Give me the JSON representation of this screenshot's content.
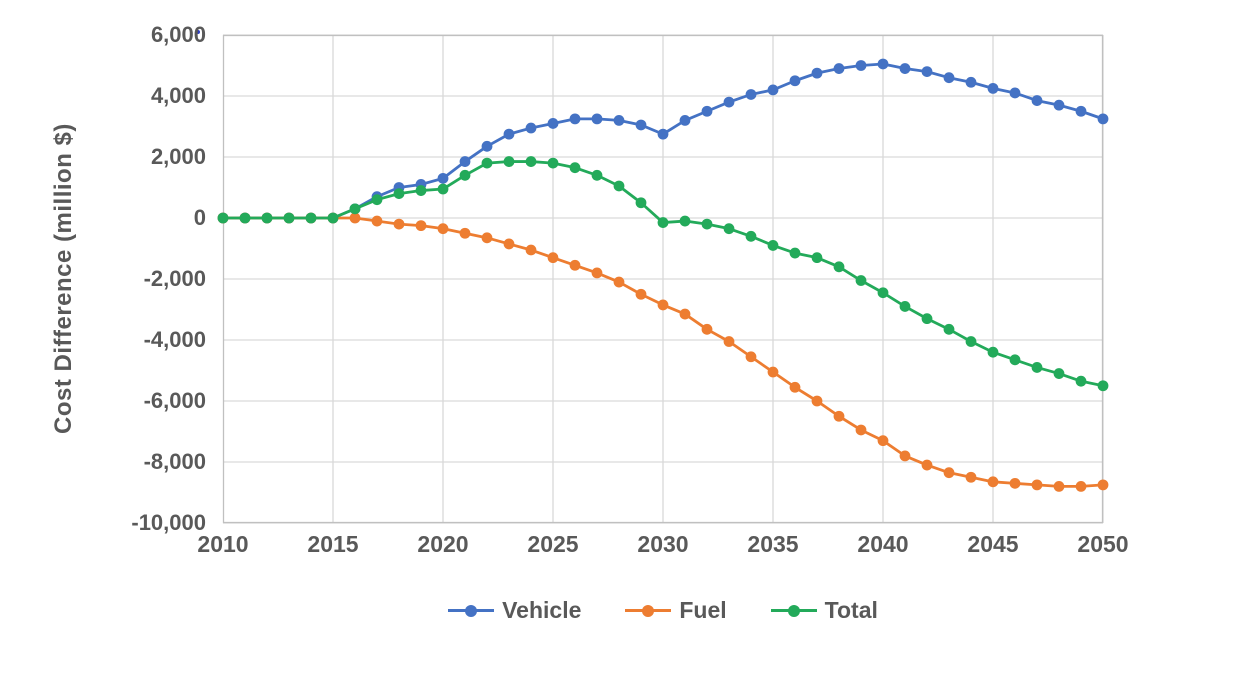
{
  "chart_data": {
    "type": "line",
    "title": "",
    "xlabel": "",
    "ylabel": "Cost Difference (million $)",
    "grid": true,
    "legend_position": "bottom",
    "text_color": "#595959",
    "grid_color": "#D9D9D9",
    "axis_color": "#C0C0C0",
    "background_color": "#FFFFFF",
    "xlim": [
      2010,
      2050
    ],
    "ylim": [
      -10000,
      6000
    ],
    "x": [
      2010,
      2011,
      2012,
      2013,
      2014,
      2015,
      2016,
      2017,
      2018,
      2019,
      2020,
      2021,
      2022,
      2023,
      2024,
      2025,
      2026,
      2027,
      2028,
      2029,
      2030,
      2031,
      2032,
      2033,
      2034,
      2035,
      2036,
      2037,
      2038,
      2039,
      2040,
      2041,
      2042,
      2043,
      2044,
      2045,
      2046,
      2047,
      2048,
      2049,
      2050
    ],
    "x_ticks": [
      2010,
      2015,
      2020,
      2025,
      2030,
      2035,
      2040,
      2045,
      2050
    ],
    "x_tick_labels": [
      "2010",
      "2015",
      "2020",
      "2025",
      "2030",
      "2035",
      "2040",
      "2045",
      "2050"
    ],
    "yticks": [
      6000,
      4000,
      2000,
      0,
      -2000,
      -4000,
      -6000,
      -8000,
      -10000
    ],
    "ytick_labels": [
      "6,000",
      "4,000",
      "2,000",
      "0",
      "-2,000",
      "-4,000",
      "-6,000",
      "-8,000",
      "-10,000"
    ],
    "series": [
      {
        "name": "Vehicle",
        "color": "#4472C4",
        "values": [
          0,
          0,
          0,
          0,
          0,
          0,
          300,
          700,
          1000,
          1100,
          1300,
          1850,
          2350,
          2750,
          2950,
          3100,
          3250,
          3250,
          3200,
          3050,
          2750,
          3200,
          3500,
          3800,
          4050,
          4200,
          4500,
          4750,
          4900,
          5000,
          5050,
          4900,
          4800,
          4600,
          4450,
          4250,
          4100,
          3850,
          3700,
          3500,
          3250
        ]
      },
      {
        "name": "Fuel",
        "color": "#ED7D31",
        "values": [
          0,
          0,
          0,
          0,
          0,
          0,
          0,
          -100,
          -200,
          -250,
          -350,
          -500,
          -650,
          -850,
          -1050,
          -1300,
          -1550,
          -1800,
          -2100,
          -2500,
          -2850,
          -3150,
          -3650,
          -4050,
          -4550,
          -5050,
          -5550,
          -6000,
          -6500,
          -6950,
          -7300,
          -7800,
          -8100,
          -8350,
          -8500,
          -8650,
          -8700,
          -8750,
          -8800,
          -8800,
          -8750
        ]
      },
      {
        "name": "Total",
        "color": "#23AA5A",
        "values": [
          0,
          0,
          0,
          0,
          0,
          0,
          300,
          600,
          800,
          900,
          950,
          1400,
          1800,
          1850,
          1850,
          1800,
          1650,
          1400,
          1050,
          500,
          -150,
          -100,
          -200,
          -350,
          -600,
          -900,
          -1150,
          -1300,
          -1600,
          -2050,
          -2450,
          -2900,
          -3300,
          -3650,
          -4050,
          -4400,
          -4650,
          -4900,
          -5100,
          -5350,
          -5500
        ]
      }
    ]
  }
}
